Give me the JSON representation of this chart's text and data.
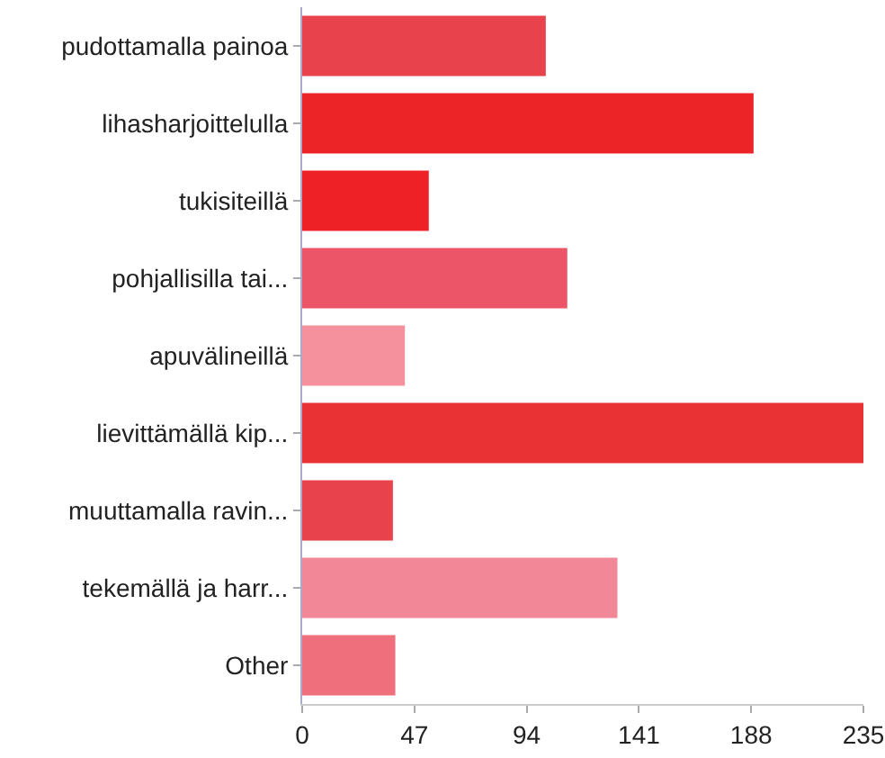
{
  "chart_data": {
    "type": "bar",
    "orientation": "horizontal",
    "categories": [
      "pudottamalla painoa",
      "lihasharjoittelulla",
      "tukisiteillä",
      "pohjallisilla tai...",
      "apuvälineillä",
      "lievittämällä kip...",
      "muuttamalla ravin...",
      "tekemällä ja harr...",
      "Other"
    ],
    "values": [
      102,
      189,
      53,
      111,
      43,
      235,
      38,
      132,
      39
    ],
    "colors": [
      "#e8424c",
      "#ec2428",
      "#ee2226",
      "#ec5567",
      "#f4919c",
      "#e83234",
      "#e8424c",
      "#f28797",
      "#f06f7d"
    ],
    "xlim": [
      0,
      235
    ],
    "xticks": [
      0,
      47,
      94,
      141,
      188,
      235
    ],
    "grid": false,
    "legend": false
  }
}
